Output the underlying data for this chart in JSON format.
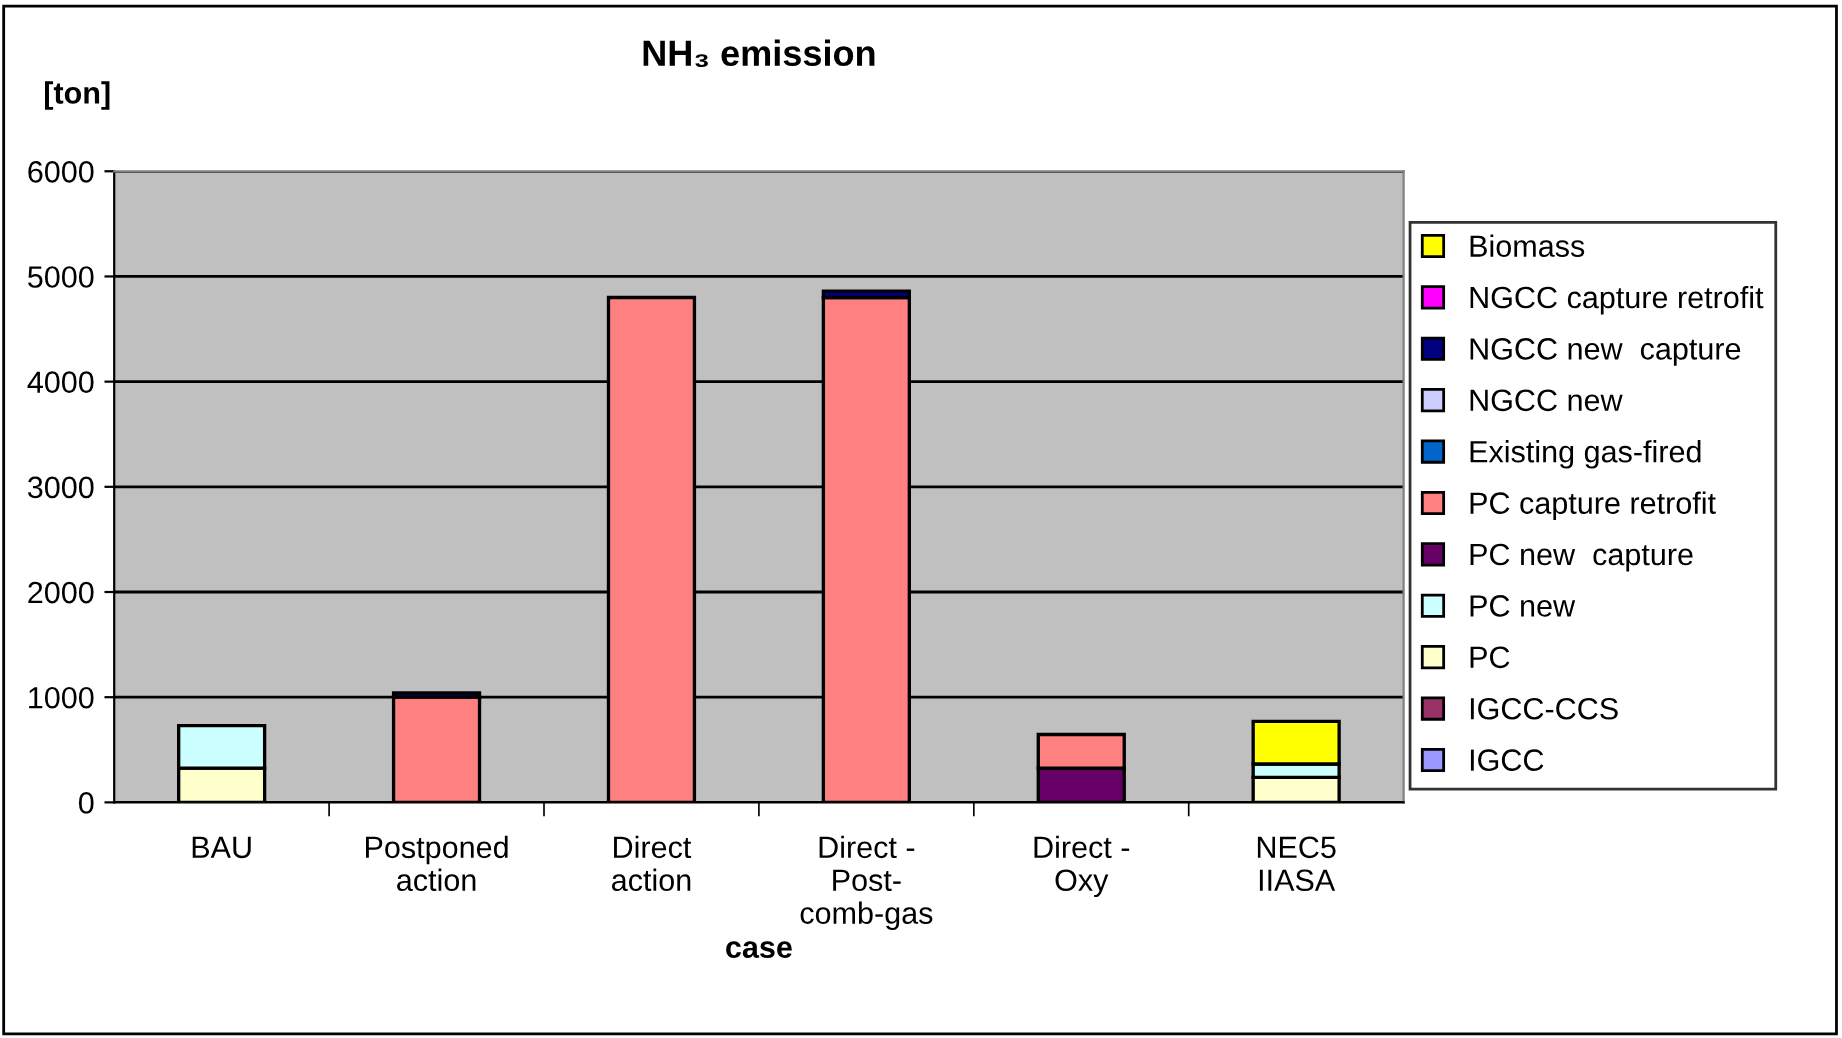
{
  "chart_data": {
    "type": "bar",
    "stacked": true,
    "title": "NH₃ emission",
    "ylabel": "[ton]",
    "xlabel": "case",
    "categories": [
      "BAU",
      "Postponed\naction",
      "Direct\naction",
      "Direct -\nPost-\ncomb-gas",
      "Direct -\nOxy",
      "NEC5\nIIASA"
    ],
    "series": [
      {
        "name": "IGCC",
        "color": "#9999ff",
        "values": [
          null,
          null,
          null,
          null,
          null,
          null
        ]
      },
      {
        "name": "IGCC-CCS",
        "color": "#993366",
        "values": [
          null,
          null,
          null,
          null,
          null,
          null
        ]
      },
      {
        "name": "PC",
        "color": "#ffffcc",
        "values": [
          325,
          null,
          null,
          null,
          null,
          238
        ]
      },
      {
        "name": "PC new",
        "color": "#ccffff",
        "values": [
          405,
          null,
          null,
          null,
          null,
          127
        ]
      },
      {
        "name": "PC new  capture",
        "color": "#660066",
        "values": [
          null,
          null,
          null,
          null,
          325,
          null
        ]
      },
      {
        "name": "PC capture retrofit",
        "color": "#ff8080",
        "values": [
          null,
          1000,
          4800,
          4800,
          320,
          null
        ]
      },
      {
        "name": "Existing gas-fired",
        "color": "#0066cc",
        "values": [
          null,
          null,
          null,
          null,
          null,
          null
        ]
      },
      {
        "name": "NGCC new",
        "color": "#ccccff",
        "values": [
          null,
          null,
          null,
          null,
          null,
          null
        ]
      },
      {
        "name": "NGCC new  capture",
        "color": "#000080",
        "values": [
          null,
          40,
          null,
          60,
          null,
          null
        ]
      },
      {
        "name": "NGCC capture retrofit",
        "color": "#ff00ff",
        "values": [
          null,
          null,
          null,
          null,
          null,
          null
        ]
      },
      {
        "name": "Biomass",
        "color": "#ffff00",
        "values": [
          null,
          null,
          null,
          null,
          null,
          405
        ]
      }
    ],
    "ylim": [
      0,
      6000
    ],
    "yticks": [
      0,
      1000,
      2000,
      3000,
      4000,
      5000,
      6000
    ],
    "grid": "y",
    "legend": "right"
  }
}
